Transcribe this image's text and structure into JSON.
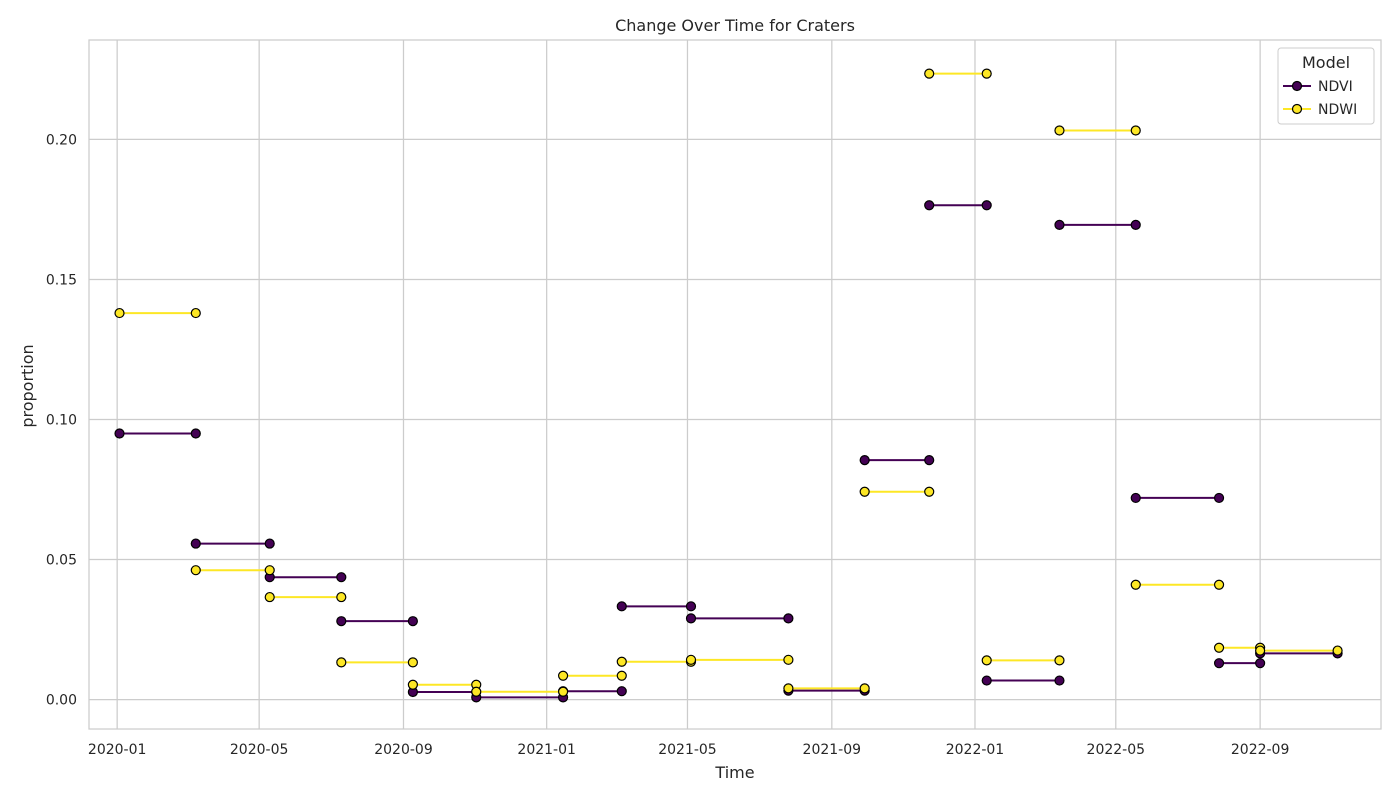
{
  "chart_data": {
    "type": "line",
    "title": "Change Over Time for Craters",
    "xlabel": "Time",
    "ylabel": "proportion",
    "x_axis_type": "date",
    "xlim": [
      "2019-12-08",
      "2022-12-13"
    ],
    "ylim": [
      -0.0105,
      0.2355
    ],
    "x_ticks": [
      "2020-01-01",
      "2020-05-01",
      "2020-09-01",
      "2021-01-01",
      "2021-05-01",
      "2021-09-01",
      "2022-01-01",
      "2022-05-01",
      "2022-09-01"
    ],
    "x_tick_labels": [
      "2020-01",
      "2020-05",
      "2020-09",
      "2021-01",
      "2021-05",
      "2021-09",
      "2022-01",
      "2022-05",
      "2022-09"
    ],
    "y_ticks": [
      0.0,
      0.05,
      0.1,
      0.15,
      0.2
    ],
    "y_tick_labels": [
      "0.00",
      "0.05",
      "0.10",
      "0.15",
      "0.20"
    ],
    "grid": true,
    "legend": {
      "title": "Model",
      "placement": "top-right"
    },
    "series": [
      {
        "name": "NDVI",
        "color": "#440154",
        "segments": [
          [
            [
              "2020-01-03",
              0.095
            ],
            [
              "2020-03-08",
              0.095
            ]
          ],
          [
            [
              "2020-03-08",
              0.0557
            ],
            [
              "2020-05-10",
              0.0557
            ]
          ],
          [
            [
              "2020-05-10",
              0.0437
            ],
            [
              "2020-07-10",
              0.0437
            ]
          ],
          [
            [
              "2020-07-10",
              0.028
            ],
            [
              "2020-09-09",
              0.028
            ]
          ],
          [
            [
              "2020-09-09",
              0.0027
            ],
            [
              "2020-11-02",
              0.0027
            ]
          ],
          [
            [
              "2020-11-02",
              0.0008
            ],
            [
              "2021-01-15",
              0.0008
            ]
          ],
          [
            [
              "2021-01-15",
              0.003
            ],
            [
              "2021-03-06",
              0.003
            ]
          ],
          [
            [
              "2021-03-06",
              0.0333
            ],
            [
              "2021-05-04",
              0.0333
            ]
          ],
          [
            [
              "2021-05-04",
              0.029
            ],
            [
              "2021-07-26",
              0.029
            ]
          ],
          [
            [
              "2021-07-26",
              0.0032
            ],
            [
              "2021-09-29",
              0.0032
            ]
          ],
          [
            [
              "2021-09-29",
              0.0855
            ],
            [
              "2021-11-23",
              0.0855
            ]
          ],
          [
            [
              "2021-11-23",
              0.1765
            ],
            [
              "2022-01-11",
              0.1765
            ]
          ],
          [
            [
              "2022-01-11",
              0.0068
            ],
            [
              "2022-03-14",
              0.0068
            ]
          ],
          [
            [
              "2022-03-14",
              0.1695
            ],
            [
              "2022-05-18",
              0.1695
            ]
          ],
          [
            [
              "2022-05-18",
              0.072
            ],
            [
              "2022-07-28",
              0.072
            ]
          ],
          [
            [
              "2022-07-28",
              0.013
            ],
            [
              "2022-09-01",
              0.013
            ]
          ],
          [
            [
              "2022-09-01",
              0.0165
            ],
            [
              "2022-11-06",
              0.0165
            ]
          ]
        ]
      },
      {
        "name": "NDWI",
        "color": "#fde725",
        "segments": [
          [
            [
              "2020-01-03",
              0.138
            ],
            [
              "2020-03-08",
              0.138
            ]
          ],
          [
            [
              "2020-03-08",
              0.0462
            ],
            [
              "2020-05-10",
              0.0462
            ]
          ],
          [
            [
              "2020-05-10",
              0.0366
            ],
            [
              "2020-07-10",
              0.0366
            ]
          ],
          [
            [
              "2020-07-10",
              0.0133
            ],
            [
              "2020-09-09",
              0.0133
            ]
          ],
          [
            [
              "2020-09-09",
              0.0053
            ],
            [
              "2020-11-02",
              0.0053
            ]
          ],
          [
            [
              "2020-11-02",
              0.0028
            ],
            [
              "2021-01-15",
              0.0028
            ]
          ],
          [
            [
              "2021-01-15",
              0.0085
            ],
            [
              "2021-03-06",
              0.0085
            ]
          ],
          [
            [
              "2021-03-06",
              0.0135
            ],
            [
              "2021-05-04",
              0.0135
            ]
          ],
          [
            [
              "2021-05-04",
              0.0142
            ],
            [
              "2021-07-26",
              0.0142
            ]
          ],
          [
            [
              "2021-07-26",
              0.004
            ],
            [
              "2021-09-29",
              0.004
            ]
          ],
          [
            [
              "2021-09-29",
              0.0742
            ],
            [
              "2021-11-23",
              0.0742
            ]
          ],
          [
            [
              "2021-11-23",
              0.2235
            ],
            [
              "2022-01-11",
              0.2235
            ]
          ],
          [
            [
              "2022-01-11",
              0.014
            ],
            [
              "2022-03-14",
              0.014
            ]
          ],
          [
            [
              "2022-03-14",
              0.2032
            ],
            [
              "2022-05-18",
              0.2032
            ]
          ],
          [
            [
              "2022-05-18",
              0.041
            ],
            [
              "2022-07-28",
              0.041
            ]
          ],
          [
            [
              "2022-07-28",
              0.0185
            ],
            [
              "2022-09-01",
              0.0185
            ]
          ],
          [
            [
              "2022-09-01",
              0.0175
            ],
            [
              "2022-11-06",
              0.0175
            ]
          ]
        ]
      }
    ]
  }
}
